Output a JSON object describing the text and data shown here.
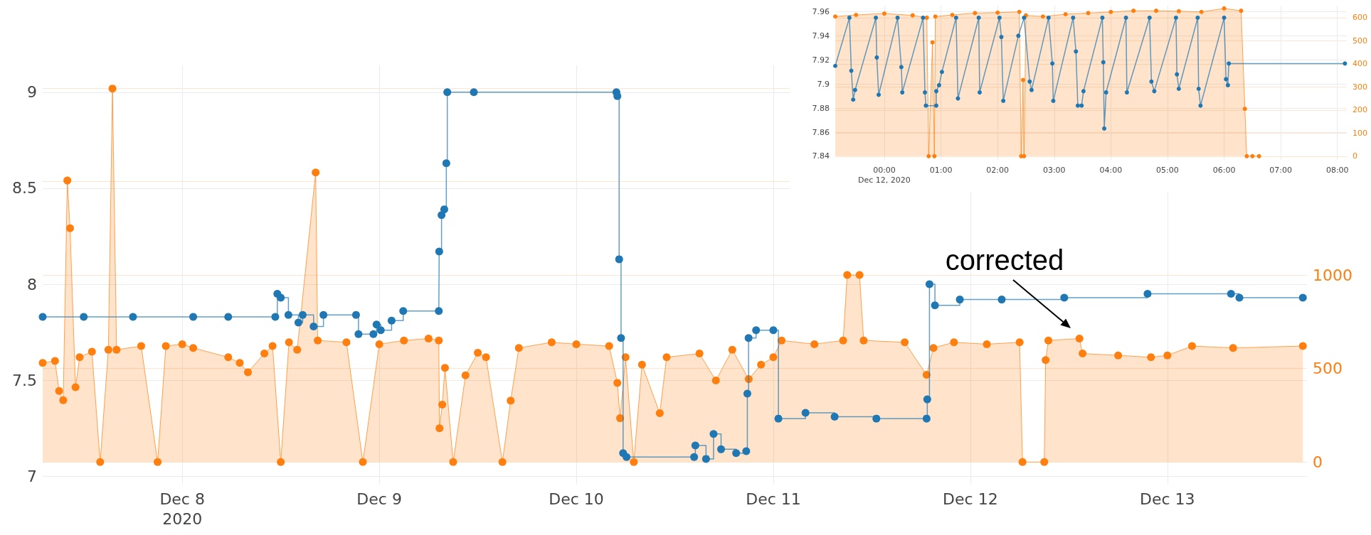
{
  "chart_data": [
    {
      "type": "step",
      "xlim": [
        "2020-12-07T07:00",
        "2020-12-13T17:00"
      ],
      "xticks": [
        {
          "value": "2020-12-08",
          "label": "Dec 8\n2020"
        },
        {
          "value": "2020-12-09",
          "label": "Dec 9"
        },
        {
          "value": "2020-12-10",
          "label": "Dec 10"
        },
        {
          "value": "2020-12-11",
          "label": "Dec 11"
        },
        {
          "value": "2020-12-12",
          "label": "Dec 12"
        },
        {
          "value": "2020-12-13",
          "label": "Dec 13"
        }
      ],
      "ylim": [
        6.96,
        9.14
      ],
      "yticks": [
        7,
        7.5,
        8,
        8.5,
        9
      ],
      "y2lim": [
        -117,
        2121
      ],
      "y2ticks": [
        0,
        500,
        1000,
        {
          "value": 1500,
          "label": null
        },
        {
          "value": 2000,
          "label": null
        }
      ],
      "grid": true,
      "marker": "circle",
      "annotations": [
        "corrected"
      ],
      "series": [
        {
          "color": "#1f77b4",
          "x": [
            "2020-12-07T07:00",
            "2020-12-07T12:00",
            "2020-12-07T18:00",
            "2020-12-08T01:20",
            "2020-12-08T05:36",
            "2020-12-08T11:20",
            "2020-12-08T11:35",
            "2020-12-08T12:00",
            "2020-12-08T12:56",
            "2020-12-08T14:09",
            "2020-12-08T14:40",
            "2020-12-08T16:00",
            "2020-12-08T17:12",
            "2020-12-08T21:10",
            "2020-12-08T21:28",
            "2020-12-08T23:17",
            "2020-12-08T23:40",
            "2020-12-09T00:11",
            "2020-12-09T01:30",
            "2020-12-09T02:55",
            "2020-12-09T07:15",
            "2020-12-09T07:18",
            "2020-12-09T07:35",
            "2020-12-09T07:55",
            "2020-12-09T08:10",
            "2020-12-09T08:17",
            "2020-12-09T11:31",
            "2020-12-10T04:53",
            "2020-12-10T05:00",
            "2020-12-10T05:13",
            "2020-12-10T05:27",
            "2020-12-10T05:42",
            "2020-12-10T06:07",
            "2020-12-10T14:21",
            "2020-12-10T14:30",
            "2020-12-10T15:48",
            "2020-12-10T16:43",
            "2020-12-10T17:38",
            "2020-12-10T19:28",
            "2020-12-10T20:42",
            "2020-12-10T20:50",
            "2020-12-10T20:59",
            "2020-12-10T21:54",
            "2020-12-11T00:00",
            "2020-12-11T00:37",
            "2020-12-11T03:55",
            "2020-12-11T07:28",
            "2020-12-11T12:33",
            "2020-12-11T18:40",
            "2020-12-11T18:45",
            "2020-12-11T19:01",
            "2020-12-11T19:41",
            "2020-12-11T22:43",
            "2020-12-12T03:49",
            "2020-12-12T11:26",
            "2020-12-12T21:35",
            "2020-12-13T07:45",
            "2020-12-13T08:46",
            "2020-12-13T16:30"
          ],
          "values": [
            7.83,
            7.83,
            7.83,
            7.83,
            7.83,
            7.83,
            7.95,
            7.93,
            7.84,
            7.8,
            7.84,
            7.78,
            7.84,
            7.84,
            7.74,
            7.74,
            7.79,
            7.76,
            7.81,
            7.86,
            7.86,
            8.17,
            8.36,
            8.39,
            8.63,
            9.0,
            9.0,
            9.0,
            8.98,
            8.13,
            7.72,
            7.12,
            7.1,
            7.1,
            7.16,
            7.09,
            7.22,
            7.14,
            7.12,
            7.13,
            7.43,
            7.72,
            7.76,
            7.76,
            7.3,
            7.33,
            7.31,
            7.3,
            7.3,
            7.4,
            8.0,
            7.89,
            7.92,
            7.92,
            7.93,
            7.95,
            7.95,
            7.93,
            7.93
          ]
        },
        {
          "type": "area",
          "axis": "y2",
          "color": "#ff7f0e",
          "x": [
            "2020-12-07T07:00",
            "2020-12-07T08:30",
            "2020-12-07T09:00",
            "2020-12-07T09:30",
            "2020-12-07T10:00",
            "2020-12-07T10:20",
            "2020-12-07T11:00",
            "2020-12-07T11:30",
            "2020-12-07T13:00",
            "2020-12-07T14:00",
            "2020-12-07T15:00",
            "2020-12-07T15:30",
            "2020-12-07T16:00",
            "2020-12-07T19:00",
            "2020-12-07T21:00",
            "2020-12-07T22:00",
            "2020-12-08T00:00",
            "2020-12-08T01:20",
            "2020-12-08T05:36",
            "2020-12-08T07:00",
            "2020-12-08T08:00",
            "2020-12-08T10:00",
            "2020-12-08T11:00",
            "2020-12-08T12:00",
            "2020-12-08T13:00",
            "2020-12-08T14:00",
            "2020-12-08T16:15",
            "2020-12-08T16:30",
            "2020-12-08T20:00",
            "2020-12-08T22:00",
            "2020-12-09T00:00",
            "2020-12-09T03:00",
            "2020-12-09T06:00",
            "2020-12-09T07:15",
            "2020-12-09T07:20",
            "2020-12-09T07:40",
            "2020-12-09T08:00",
            "2020-12-09T09:00",
            "2020-12-09T10:30",
            "2020-12-09T12:00",
            "2020-12-09T13:00",
            "2020-12-09T15:00",
            "2020-12-09T16:00",
            "2020-12-09T17:00",
            "2020-12-09T21:00",
            "2020-12-10T00:00",
            "2020-12-10T04:00",
            "2020-12-10T05:00",
            "2020-12-10T05:20",
            "2020-12-10T06:00",
            "2020-12-10T07:00",
            "2020-12-10T08:00",
            "2020-12-10T10:10",
            "2020-12-10T11:00",
            "2020-12-10T15:00",
            "2020-12-10T17:00",
            "2020-12-10T19:00",
            "2020-12-10T21:00",
            "2020-12-10T22:30",
            "2020-12-11T00:00",
            "2020-12-11T01:00",
            "2020-12-11T05:00",
            "2020-12-11T08:30",
            "2020-12-11T09:00",
            "2020-12-11T10:30",
            "2020-12-11T11:00",
            "2020-12-11T16:00",
            "2020-12-11T18:40",
            "2020-12-11T19:30",
            "2020-12-11T22:00",
            "2020-12-12T02:00",
            "2020-12-12T06:00",
            "2020-12-12T06:21",
            "2020-12-12T09:00",
            "2020-12-12T09:10",
            "2020-12-12T09:30",
            "2020-12-12T13:17",
            "2020-12-12T13:40",
            "2020-12-12T18:00",
            "2020-12-12T22:00",
            "2020-12-13T00:00",
            "2020-12-13T03:00",
            "2020-12-13T08:00",
            "2020-12-13T16:30"
          ],
          "values": [
            530,
            540,
            380,
            330,
            1505,
            1250,
            400,
            560,
            590,
            0,
            600,
            1997,
            600,
            620,
            0,
            620,
            630,
            610,
            560,
            530,
            480,
            580,
            620,
            0,
            640,
            600,
            1548,
            650,
            640,
            0,
            630,
            650,
            660,
            650,
            180,
            307,
            503,
            0,
            463,
            584,
            560,
            0,
            328,
            610,
            640,
            630,
            620,
            423,
            234,
            560,
            0,
            520,
            261,
            560,
            580,
            436,
            600,
            443,
            520,
            560,
            650,
            630,
            650,
            1000,
            1000,
            650,
            640,
            466,
            610,
            640,
            630,
            640,
            0,
            0,
            545,
            650,
            660,
            580,
            570,
            560,
            570,
            620,
            610,
            620
          ]
        }
      ]
    },
    {
      "type": "line",
      "xlim": [
        "2020-12-11T23:08",
        "2020-12-12T08:10"
      ],
      "xticks": [
        {
          "value": "2020-12-12T00:00",
          "label": "00:00\nDec 12, 2020"
        },
        {
          "value": "2020-12-12T01:00",
          "label": "01:00"
        },
        {
          "value": "2020-12-12T02:00",
          "label": "02:00"
        },
        {
          "value": "2020-12-12T03:00",
          "label": "03:00"
        },
        {
          "value": "2020-12-12T04:00",
          "label": "04:00"
        },
        {
          "value": "2020-12-12T05:00",
          "label": "05:00"
        },
        {
          "value": "2020-12-12T06:00",
          "label": "06:00"
        },
        {
          "value": "2020-12-12T07:00",
          "label": "07:00"
        },
        {
          "value": "2020-12-12T08:00",
          "label": "08:00"
        }
      ],
      "ylim": [
        7.837,
        7.965
      ],
      "yticks": [
        7.84,
        7.86,
        7.88,
        7.9,
        7.92,
        7.94,
        7.96
      ],
      "y2lim": [
        -16,
        652
      ],
      "y2ticks": [
        0,
        100,
        200,
        300,
        400,
        500,
        600
      ],
      "grid": true,
      "marker": "circle",
      "series": [
        {
          "type": "area",
          "axis": "y2",
          "color": "#ff7f0e",
          "x": [
            "2020-12-11T23:08",
            "2020-12-11T23:30",
            "2020-12-12T00:00",
            "2020-12-12T00:30",
            "2020-12-12T00:45",
            "2020-12-12T00:47",
            "2020-12-12T00:51",
            "2020-12-12T00:53",
            "2020-12-12T00:54",
            "2020-12-12T01:12",
            "2020-12-12T01:36",
            "2020-12-12T02:00",
            "2020-12-12T02:23",
            "2020-12-12T02:25",
            "2020-12-12T02:27",
            "2020-12-12T02:28",
            "2020-12-12T02:30",
            "2020-12-12T02:48",
            "2020-12-12T03:12",
            "2020-12-12T03:36",
            "2020-12-12T04:00",
            "2020-12-12T04:24",
            "2020-12-12T04:48",
            "2020-12-12T05:12",
            "2020-12-12T05:36",
            "2020-12-12T06:00",
            "2020-12-12T06:18",
            "2020-12-12T06:22",
            "2020-12-12T06:24",
            "2020-12-12T06:30",
            "2020-12-12T06:37"
          ],
          "values": [
            605,
            612,
            618,
            610,
            600,
            0,
            493,
            0,
            605,
            612,
            620,
            622,
            625,
            0,
            330,
            0,
            610,
            605,
            615,
            620,
            625,
            630,
            630,
            628,
            625,
            640,
            630,
            205,
            0,
            0,
            0
          ]
        },
        {
          "color": "#1f77b4",
          "x": [
            "2020-12-11T23:08",
            "2020-12-11T23:23",
            "2020-12-11T23:25",
            "2020-12-11T23:27",
            "2020-12-11T23:29",
            "2020-12-11T23:51",
            "2020-12-11T23:52",
            "2020-12-11T23:54",
            "2020-12-12T00:14",
            "2020-12-12T00:18",
            "2020-12-12T00:19",
            "2020-12-12T00:41",
            "2020-12-12T00:43",
            "2020-12-12T00:44",
            "2020-12-12T00:55",
            "2020-12-12T00:55",
            "2020-12-12T00:58",
            "2020-12-12T01:01",
            "2020-12-12T01:16",
            "2020-12-12T01:18",
            "2020-12-12T01:40",
            "2020-12-12T01:41",
            "2020-12-12T02:02",
            "2020-12-12T02:04",
            "2020-12-12T02:06",
            "2020-12-12T02:22",
            "2020-12-12T02:28",
            "2020-12-12T02:34",
            "2020-12-12T02:36",
            "2020-12-12T02:54",
            "2020-12-12T02:58",
            "2020-12-12T02:59",
            "2020-12-12T03:20",
            "2020-12-12T03:23",
            "2020-12-12T03:25",
            "2020-12-12T03:29",
            "2020-12-12T03:31",
            "2020-12-12T03:51",
            "2020-12-12T03:52",
            "2020-12-12T03:53",
            "2020-12-12T03:55",
            "2020-12-12T04:16",
            "2020-12-12T04:17",
            "2020-12-12T04:41",
            "2020-12-12T04:43",
            "2020-12-12T04:46",
            "2020-12-12T05:09",
            "2020-12-12T05:10",
            "2020-12-12T05:12",
            "2020-12-12T05:32",
            "2020-12-12T05:33",
            "2020-12-12T05:35",
            "2020-12-12T06:00",
            "2020-12-12T06:02",
            "2020-12-12T06:04",
            "2020-12-12T06:05",
            "2020-12-12T08:08"
          ],
          "values": [
            7.915,
            7.955,
            7.911,
            7.887,
            7.895,
            7.955,
            7.922,
            7.891,
            7.955,
            7.914,
            7.893,
            7.955,
            7.893,
            7.882,
            7.882,
            7.894,
            7.899,
            7.91,
            7.955,
            7.888,
            7.955,
            7.893,
            7.955,
            7.939,
            7.886,
            7.94,
            7.955,
            7.902,
            7.895,
            7.955,
            7.917,
            7.886,
            7.955,
            7.927,
            7.882,
            7.882,
            7.894,
            7.955,
            7.918,
            7.863,
            7.893,
            7.955,
            7.893,
            7.955,
            7.902,
            7.894,
            7.955,
            7.908,
            7.896,
            7.955,
            7.896,
            7.882,
            7.955,
            7.904,
            7.899,
            7.917,
            7.917
          ]
        }
      ]
    }
  ]
}
